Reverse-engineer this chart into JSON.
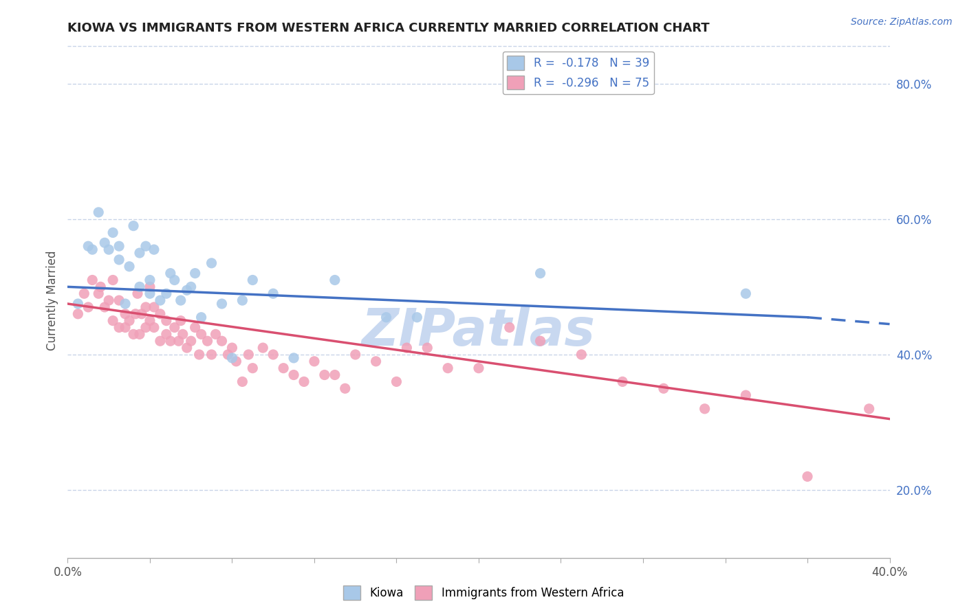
{
  "title": "KIOWA VS IMMIGRANTS FROM WESTERN AFRICA CURRENTLY MARRIED CORRELATION CHART",
  "source_text": "Source: ZipAtlas.com",
  "ylabel": "Currently Married",
  "x_min": 0.0,
  "x_max": 0.4,
  "y_min": 0.1,
  "y_max": 0.86,
  "right_yticks": [
    0.2,
    0.4,
    0.6,
    0.8
  ],
  "right_ytick_labels": [
    "20.0%",
    "40.0%",
    "60.0%",
    "80.0%"
  ],
  "xtick_positions": [
    0.0,
    0.04,
    0.08,
    0.12,
    0.16,
    0.2,
    0.24,
    0.28,
    0.32,
    0.36,
    0.4
  ],
  "xtick_labels_sparse": {
    "0": "0.0%",
    "10": "40.0%"
  },
  "kiowa_color": "#a8c8e8",
  "immigrant_color": "#f0a0b8",
  "trend_kiowa_color": "#4472c4",
  "trend_immigrant_color": "#d94f70",
  "legend_text_color": "#4472c4",
  "watermark_text": "ZIPatlas",
  "watermark_color": "#c8d8f0",
  "kiowa_R": -0.178,
  "kiowa_N": 39,
  "immigrant_R": -0.296,
  "immigrant_N": 75,
  "background_color": "#ffffff",
  "grid_color": "#c8d4e8",
  "trend_k_x0": 0.0,
  "trend_k_y0": 0.5,
  "trend_k_x1": 0.36,
  "trend_k_y1": 0.455,
  "trend_k_dash_x1": 0.4,
  "trend_k_dash_y1": 0.445,
  "trend_i_x0": 0.0,
  "trend_i_y0": 0.475,
  "trend_i_x1": 0.4,
  "trend_i_y1": 0.305,
  "kiowa_x": [
    0.005,
    0.01,
    0.012,
    0.015,
    0.018,
    0.02,
    0.022,
    0.025,
    0.025,
    0.028,
    0.03,
    0.032,
    0.035,
    0.035,
    0.038,
    0.04,
    0.04,
    0.042,
    0.045,
    0.048,
    0.05,
    0.052,
    0.055,
    0.058,
    0.06,
    0.062,
    0.065,
    0.07,
    0.075,
    0.08,
    0.085,
    0.09,
    0.1,
    0.11,
    0.13,
    0.155,
    0.17,
    0.23,
    0.33
  ],
  "kiowa_y": [
    0.475,
    0.56,
    0.555,
    0.61,
    0.565,
    0.555,
    0.58,
    0.54,
    0.56,
    0.475,
    0.53,
    0.59,
    0.5,
    0.55,
    0.56,
    0.49,
    0.51,
    0.555,
    0.48,
    0.49,
    0.52,
    0.51,
    0.48,
    0.495,
    0.5,
    0.52,
    0.455,
    0.535,
    0.475,
    0.395,
    0.48,
    0.51,
    0.49,
    0.395,
    0.51,
    0.455,
    0.455,
    0.52,
    0.49
  ],
  "immigrant_x": [
    0.005,
    0.008,
    0.01,
    0.012,
    0.015,
    0.016,
    0.018,
    0.02,
    0.022,
    0.022,
    0.025,
    0.025,
    0.028,
    0.028,
    0.03,
    0.032,
    0.033,
    0.034,
    0.035,
    0.036,
    0.038,
    0.038,
    0.04,
    0.04,
    0.042,
    0.042,
    0.045,
    0.045,
    0.048,
    0.048,
    0.05,
    0.052,
    0.054,
    0.055,
    0.056,
    0.058,
    0.06,
    0.062,
    0.064,
    0.065,
    0.068,
    0.07,
    0.072,
    0.075,
    0.078,
    0.08,
    0.082,
    0.085,
    0.088,
    0.09,
    0.095,
    0.1,
    0.105,
    0.11,
    0.115,
    0.12,
    0.125,
    0.13,
    0.135,
    0.14,
    0.15,
    0.16,
    0.165,
    0.175,
    0.185,
    0.2,
    0.215,
    0.23,
    0.25,
    0.27,
    0.29,
    0.31,
    0.33,
    0.36,
    0.39
  ],
  "immigrant_y": [
    0.46,
    0.49,
    0.47,
    0.51,
    0.49,
    0.5,
    0.47,
    0.48,
    0.45,
    0.51,
    0.44,
    0.48,
    0.44,
    0.46,
    0.45,
    0.43,
    0.46,
    0.49,
    0.43,
    0.46,
    0.44,
    0.47,
    0.45,
    0.5,
    0.44,
    0.47,
    0.42,
    0.46,
    0.43,
    0.45,
    0.42,
    0.44,
    0.42,
    0.45,
    0.43,
    0.41,
    0.42,
    0.44,
    0.4,
    0.43,
    0.42,
    0.4,
    0.43,
    0.42,
    0.4,
    0.41,
    0.39,
    0.36,
    0.4,
    0.38,
    0.41,
    0.4,
    0.38,
    0.37,
    0.36,
    0.39,
    0.37,
    0.37,
    0.35,
    0.4,
    0.39,
    0.36,
    0.41,
    0.41,
    0.38,
    0.38,
    0.44,
    0.42,
    0.4,
    0.36,
    0.35,
    0.32,
    0.34,
    0.22,
    0.32
  ]
}
